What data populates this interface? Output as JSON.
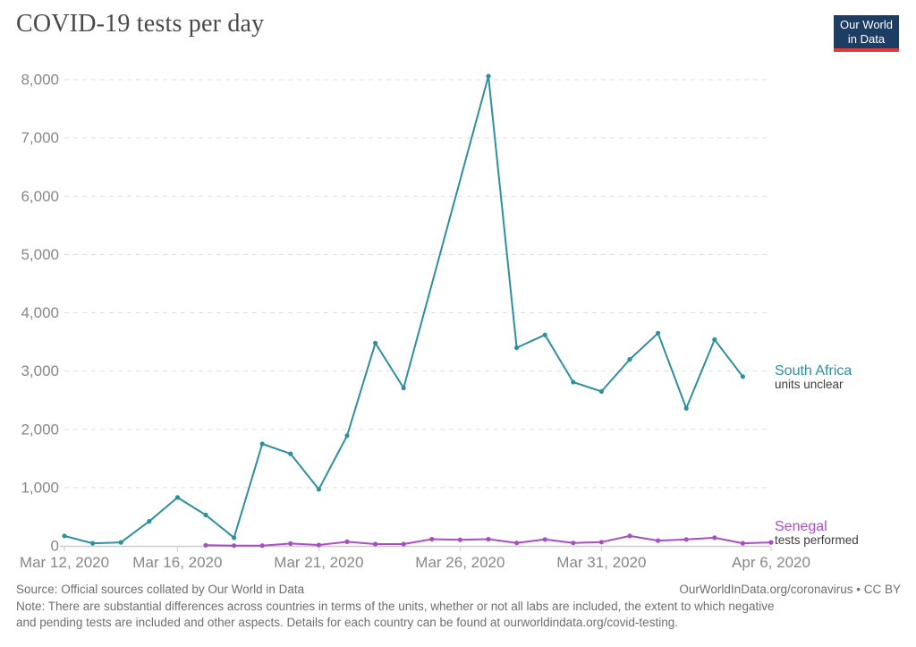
{
  "header": {
    "title": "COVID-19 tests per day",
    "logo_line1": "Our World",
    "logo_line2": "in Data"
  },
  "footer": {
    "source": "Source: Official sources collated by Our World in Data",
    "attribution": "OurWorldInData.org/coronavirus • CC BY",
    "note_line1": "Note: There are substantial differences across countries in terms of the units, whether or not all labs are included, the extent to which negative",
    "note_line2": "and pending tests are included and other aspects. Details for each country can be found at ourworldindata.org/covid-testing."
  },
  "colors": {
    "south_africa": "#2e8f9e",
    "senegal": "#a94ec2",
    "axis_text": "#878787",
    "grid": "#dddddd",
    "axis_line": "#cccccc",
    "sublabel_text": "#3d3d3d",
    "title_text": "#4a4a4a",
    "logo_bg": "#1d3d63",
    "logo_red": "#d93c3c"
  },
  "chart_data": {
    "type": "line",
    "title": "COVID-19 tests per day",
    "xlabel": "",
    "ylabel": "",
    "ylim": [
      0,
      8000
    ],
    "grid": true,
    "legend_position": "right-of-line-end",
    "x_dates": [
      "Mar 12, 2020",
      "Mar 13, 2020",
      "Mar 14, 2020",
      "Mar 15, 2020",
      "Mar 16, 2020",
      "Mar 17, 2020",
      "Mar 18, 2020",
      "Mar 19, 2020",
      "Mar 20, 2020",
      "Mar 21, 2020",
      "Mar 22, 2020",
      "Mar 23, 2020",
      "Mar 24, 2020",
      "Mar 25, 2020",
      "Mar 26, 2020",
      "Mar 27, 2020",
      "Mar 28, 2020",
      "Mar 29, 2020",
      "Mar 30, 2020",
      "Mar 31, 2020",
      "Apr 1, 2020",
      "Apr 2, 2020",
      "Apr 3, 2020",
      "Apr 4, 2020",
      "Apr 5, 2020",
      "Apr 6, 2020"
    ],
    "x_ticks": [
      {
        "index": 0,
        "label": "Mar 12, 2020"
      },
      {
        "index": 4,
        "label": "Mar 16, 2020"
      },
      {
        "index": 9,
        "label": "Mar 21, 2020"
      },
      {
        "index": 14,
        "label": "Mar 26, 2020"
      },
      {
        "index": 19,
        "label": "Mar 31, 2020"
      },
      {
        "index": 25,
        "label": "Apr 6, 2020"
      }
    ],
    "y_ticks": [
      {
        "value": 0,
        "label": "0"
      },
      {
        "value": 1000,
        "label": "1,000"
      },
      {
        "value": 2000,
        "label": "2,000"
      },
      {
        "value": 3000,
        "label": "3,000"
      },
      {
        "value": 4000,
        "label": "4,000"
      },
      {
        "value": 5000,
        "label": "5,000"
      },
      {
        "value": 6000,
        "label": "6,000"
      },
      {
        "value": 7000,
        "label": "7,000"
      },
      {
        "value": 8000,
        "label": "8,000"
      }
    ],
    "series": [
      {
        "name": "South Africa",
        "sublabel": "units unclear",
        "color": "#2e8f9e",
        "values": [
          170,
          45,
          60,
          420,
          830,
          530,
          140,
          1750,
          1580,
          970,
          1890,
          3480,
          2710,
          null,
          null,
          8060,
          3400,
          3620,
          2810,
          2650,
          3200,
          3650,
          2360,
          3540,
          2905,
          null
        ]
      },
      {
        "name": "Senegal",
        "sublabel": "tests performed",
        "color": "#a94ec2",
        "values": [
          null,
          null,
          null,
          null,
          null,
          10,
          5,
          5,
          40,
          15,
          70,
          30,
          30,
          115,
          105,
          115,
          50,
          110,
          50,
          65,
          170,
          90,
          110,
          140,
          45,
          60
        ]
      }
    ]
  }
}
